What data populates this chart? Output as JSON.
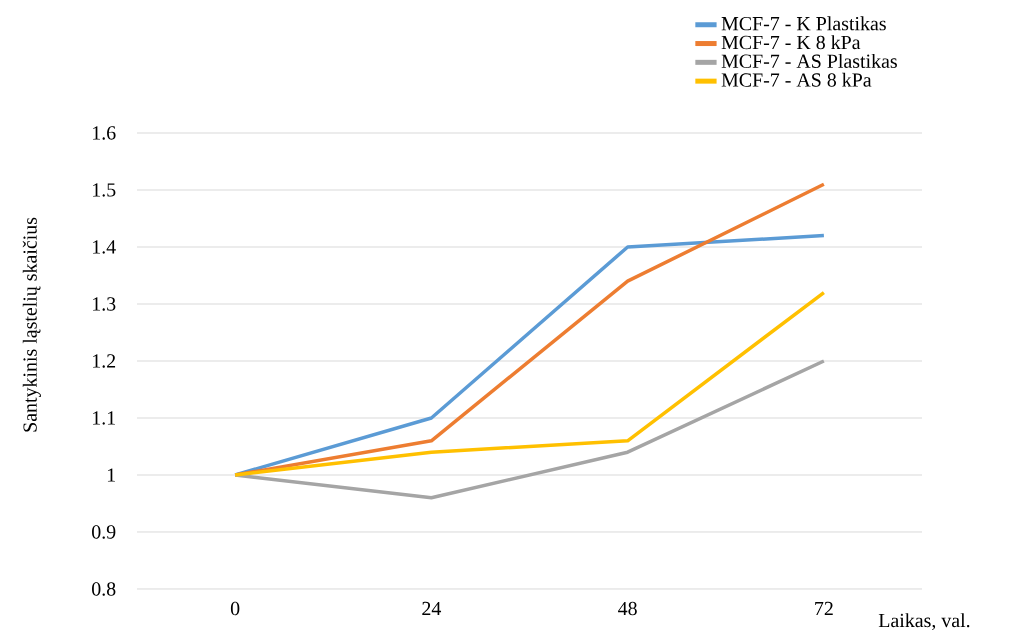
{
  "chart_data": {
    "type": "line",
    "xlabel": "Laikas, val.",
    "ylabel": "Santykinis ląstelių skaičius",
    "categories": [
      "0",
      "24",
      "48",
      "72"
    ],
    "series": [
      {
        "name": "MCF-7 - K Plastikas",
        "color": "#5b9bd5",
        "values": [
          1,
          1.1,
          1.4,
          1.42
        ]
      },
      {
        "name": "MCF-7 - K 8 kPa",
        "color": "#ed7d31",
        "values": [
          1,
          1.06,
          1.34,
          1.51
        ]
      },
      {
        "name": "MCF-7 - AS Plastikas",
        "color": "#a5a5a5",
        "values": [
          1,
          0.96,
          1.04,
          1.2
        ]
      },
      {
        "name": "MCF-7 - AS 8 kPa",
        "color": "#ffc000",
        "values": [
          1,
          1.04,
          1.06,
          1.32
        ]
      }
    ],
    "ylim": [
      0.8,
      1.6
    ],
    "yticks": [
      0.8,
      0.9,
      1,
      1.1,
      1.2,
      1.3,
      1.4,
      1.5,
      1.6
    ],
    "grid": "y",
    "legend": "top right",
    "marker": "none",
    "line_style": "solid"
  }
}
